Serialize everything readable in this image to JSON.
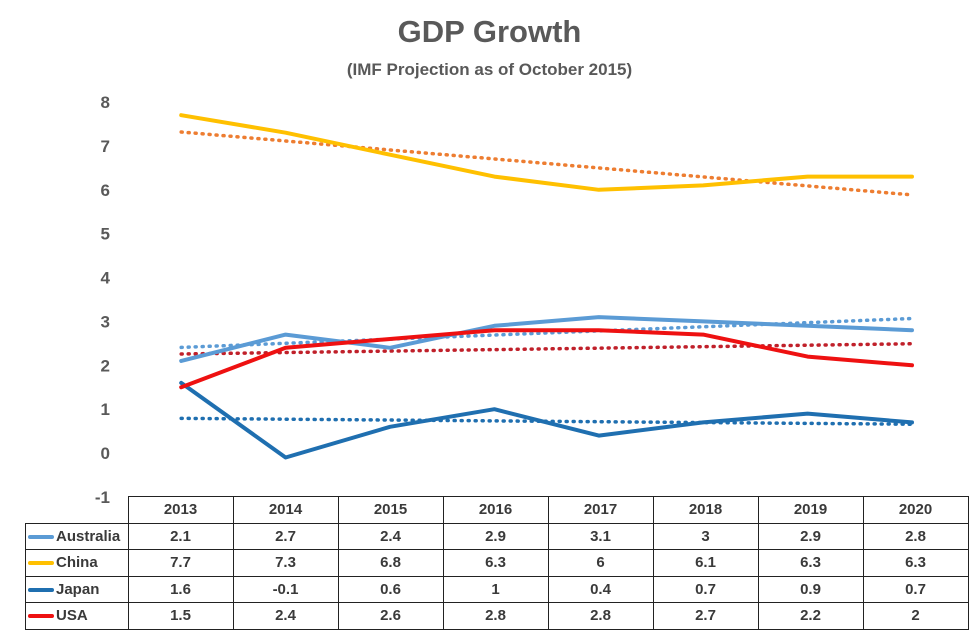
{
  "chart_data": {
    "type": "line",
    "title": "GDP Growth",
    "subtitle": "(IMF Projection as of October 2015)",
    "categories": [
      "2013",
      "2014",
      "2015",
      "2016",
      "2017",
      "2018",
      "2019",
      "2020"
    ],
    "ylim": [
      -1,
      8
    ],
    "yticks": [
      "8",
      "7",
      "6",
      "5",
      "4",
      "3",
      "2",
      "1",
      "0",
      "-1"
    ],
    "grid": false,
    "legend": "data table below plot",
    "trendlines": "linear, dotted, one per series",
    "series": [
      {
        "name": "Australia",
        "color": "#5b9bd5",
        "trend_color": "#5b9bd5",
        "values": [
          2.1,
          2.7,
          2.4,
          2.9,
          3.1,
          3,
          2.9,
          2.8
        ],
        "labels": [
          "2.1",
          "2.7",
          "2.4",
          "2.9",
          "3.1",
          "3",
          "2.9",
          "2.8"
        ]
      },
      {
        "name": "China",
        "color": "#ffc000",
        "trend_color": "#ed7d31",
        "values": [
          7.7,
          7.3,
          6.8,
          6.3,
          6,
          6.1,
          6.3,
          6.3
        ],
        "labels": [
          "7.7",
          "7.3",
          "6.8",
          "6.3",
          "6",
          "6.1",
          "6.3",
          "6.3"
        ]
      },
      {
        "name": "Japan",
        "color": "#1f6fb0",
        "trend_color": "#1f6fb0",
        "values": [
          1.6,
          -0.1,
          0.6,
          1,
          0.4,
          0.7,
          0.9,
          0.7
        ],
        "labels": [
          "1.6",
          "-0.1",
          "0.6",
          "1",
          "0.4",
          "0.7",
          "0.9",
          "0.7"
        ]
      },
      {
        "name": "USA",
        "color": "#ee1111",
        "trend_color": "#c0202a",
        "values": [
          1.5,
          2.4,
          2.6,
          2.8,
          2.8,
          2.7,
          2.2,
          2
        ],
        "labels": [
          "1.5",
          "2.4",
          "2.6",
          "2.8",
          "2.8",
          "2.7",
          "2.2",
          "2"
        ]
      }
    ]
  }
}
